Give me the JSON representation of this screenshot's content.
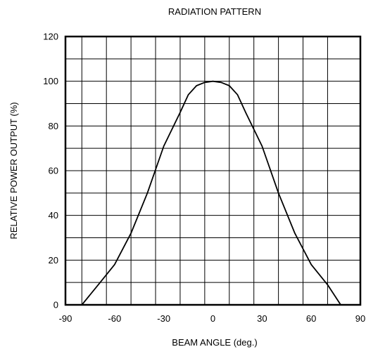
{
  "chart_data": {
    "type": "line",
    "title": "RADIATION PATTERN",
    "xlabel": "BEAM ANGLE (deg.)",
    "ylabel": "RELATIVE POWER OUTPUT (%)",
    "xlim": [
      -90,
      90
    ],
    "ylim": [
      0,
      120
    ],
    "xticks": [
      -90,
      -60,
      -30,
      0,
      30,
      60,
      90
    ],
    "xtick_labels": [
      "-90",
      "-60",
      "-30",
      "0",
      "30",
      "60",
      "90"
    ],
    "yticks": [
      0,
      20,
      40,
      60,
      80,
      100,
      120
    ],
    "ytick_labels": [
      "0",
      "20",
      "40",
      "60",
      "80",
      "100",
      "120"
    ],
    "grid": true,
    "series": [
      {
        "x": [
          -80,
          -70,
          -60,
          -50,
          -40,
          -30,
          -20,
          -15,
          -10,
          -5,
          0,
          5,
          10,
          15,
          20,
          30,
          40,
          50,
          60,
          70,
          78
        ],
        "y": [
          0,
          9,
          18,
          32,
          50,
          71,
          86,
          94,
          98,
          99.5,
          100,
          99.5,
          98,
          94,
          86,
          71,
          50,
          32,
          18,
          9,
          0
        ]
      }
    ],
    "colors": {
      "line": "#000000",
      "grid": "#000000",
      "frame": "#000000"
    }
  }
}
